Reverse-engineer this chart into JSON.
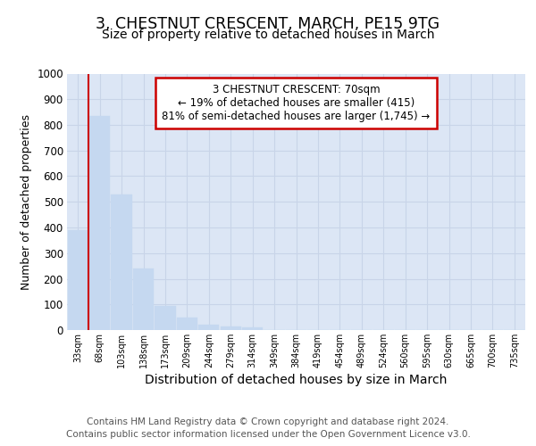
{
  "title1": "3, CHESTNUT CRESCENT, MARCH, PE15 9TG",
  "title2": "Size of property relative to detached houses in March",
  "xlabel": "Distribution of detached houses by size in March",
  "ylabel": "Number of detached properties",
  "bar_labels": [
    "33sqm",
    "68sqm",
    "103sqm",
    "138sqm",
    "173sqm",
    "209sqm",
    "244sqm",
    "279sqm",
    "314sqm",
    "349sqm",
    "384sqm",
    "419sqm",
    "454sqm",
    "489sqm",
    "524sqm",
    "560sqm",
    "595sqm",
    "630sqm",
    "665sqm",
    "700sqm",
    "735sqm"
  ],
  "bar_values": [
    390,
    835,
    530,
    240,
    95,
    50,
    20,
    15,
    10,
    0,
    0,
    0,
    0,
    0,
    0,
    0,
    0,
    0,
    0,
    0,
    0
  ],
  "bar_color": "#c5d8f0",
  "bar_edge_color": "#c5d8f0",
  "property_line_color": "#cc0000",
  "annotation_text": "3 CHESTNUT CRESCENT: 70sqm\n← 19% of detached houses are smaller (415)\n81% of semi-detached houses are larger (1,745) →",
  "ylim": [
    0,
    1000
  ],
  "yticks": [
    0,
    100,
    200,
    300,
    400,
    500,
    600,
    700,
    800,
    900,
    1000
  ],
  "grid_color": "#c8d4e8",
  "plot_bg_color": "#dce6f5",
  "footer_text": "Contains HM Land Registry data © Crown copyright and database right 2024.\nContains public sector information licensed under the Open Government Licence v3.0."
}
